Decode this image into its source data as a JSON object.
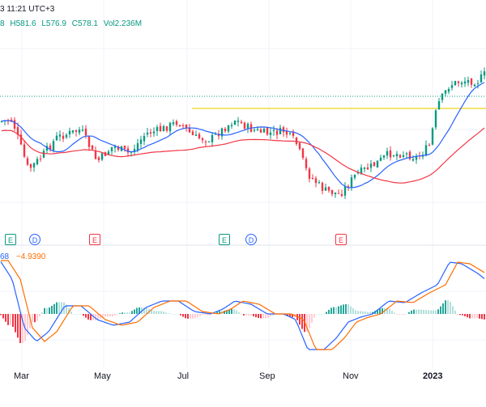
{
  "header": {
    "timestamp_fragment": "3 11:21 UTC+3",
    "open_fragment": "8",
    "high": "H581.6",
    "low": "L576.9",
    "close": "C578.1",
    "volume": "Vol2.236M"
  },
  "macd": {
    "value1_fragment": "68",
    "value2": "−4.9390"
  },
  "events": {
    "earnings": "E",
    "dividend": "D"
  },
  "x_labels": [
    "Mar",
    "May",
    "Jul",
    "Sep",
    "Nov",
    "2023"
  ],
  "colors": {
    "up": "#089981",
    "down": "#f23645",
    "ma_fast": "#2962ff",
    "ma_slow": "#f23645",
    "resistance": "#f2d31f",
    "macd": "#2962ff",
    "signal": "#ff6d00",
    "hist_up": "#26a69a",
    "hist_up_weak": "#b2dfdb",
    "hist_down": "#f23645",
    "hist_down_weak": "#ffcdd2"
  },
  "chart_data": [
    {
      "type": "candlestick",
      "title": "",
      "x_ticks": [
        "Mar",
        "May",
        "Jul",
        "Sep",
        "Nov",
        "2023"
      ],
      "last_bar": {
        "high": 581.6,
        "low": 576.9,
        "close": 578.1,
        "volume": "2.236M"
      },
      "series": [
        {
          "name": "",
          "type": "line",
          "note": "fast moving average"
        },
        {
          "name": "",
          "type": "line",
          "note": "slow moving average"
        }
      ]
    },
    {
      "type": "bar+line",
      "title": "",
      "series": [
        {
          "name": "",
          "type": "line"
        },
        {
          "name": "",
          "type": "line"
        },
        {
          "name": "",
          "type": "histogram"
        }
      ],
      "last_value_signal": -4.939
    }
  ]
}
